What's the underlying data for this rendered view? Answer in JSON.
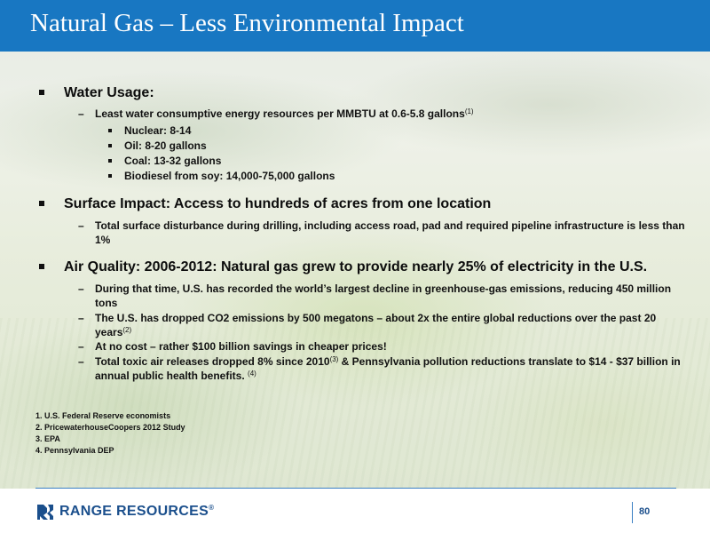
{
  "title": "Natural Gas – Less Environmental Impact",
  "sections": [
    {
      "heading": "Water Usage:",
      "items": [
        {
          "text": "Least water consumptive energy resources per MMBTU at 0.6-5.8 gallons",
          "sup": "(1)",
          "subitems": [
            "Nuclear: 8-14",
            "Oil: 8-20 gallons",
            "Coal: 13-32 gallons",
            "Biodiesel from soy: 14,000-75,000 gallons"
          ]
        }
      ]
    },
    {
      "heading": "Surface Impact: Access to hundreds of acres from one location",
      "items": [
        {
          "text": "Total surface disturbance during drilling, including access road, pad and required pipeline infrastructure is less than 1%"
        }
      ]
    },
    {
      "heading": "Air Quality: 2006-2012: Natural gas grew to provide nearly 25% of electricity in the U.S.",
      "items": [
        {
          "text": "During that time, U.S. has recorded the world’s largest decline in greenhouse-gas emissions, reducing 450 million tons"
        },
        {
          "text": "The U.S. has dropped CO2 emissions by 500 megatons – about 2x the entire global reductions over the past 20 years",
          "sup": "(2)"
        },
        {
          "text": "At no cost – rather $100 billion savings in cheaper prices!"
        },
        {
          "text_a": "Total toxic air releases dropped 8% since 2010",
          "sup_a": "(3)",
          "text_b": " & Pennsylvania pollution reductions translate to $14 - $37 billion in annual public health benefits. ",
          "sup_b": "(4)"
        }
      ]
    }
  ],
  "footnotes": [
    "1. U.S. Federal Reserve economists",
    "2. PricewaterhouseCoopers 2012 Study",
    "3. EPA",
    "4. Pennsylvania DEP"
  ],
  "footer": {
    "logo_text": "RANGE RESOURCES",
    "logo_reg": "®",
    "page_number": "80"
  },
  "colors": {
    "title_bar": "#1877c2",
    "brand_blue": "#1b4f8c",
    "footer_line": "#3a7fc4"
  }
}
